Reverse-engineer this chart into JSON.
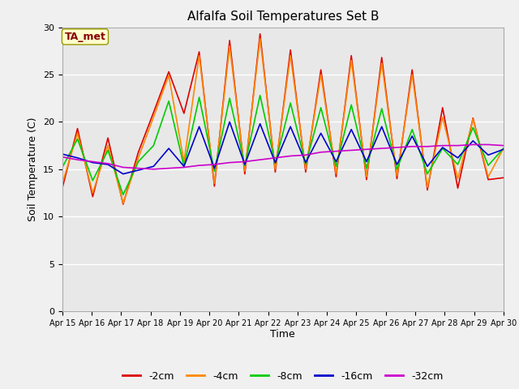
{
  "title": "Alfalfa Soil Temperatures Set B",
  "xlabel": "Time",
  "ylabel": "Soil Temperature (C)",
  "ylim": [
    0,
    30
  ],
  "yticks": [
    0,
    5,
    10,
    15,
    20,
    25,
    30
  ],
  "fig_bg_color": "#f0f0f0",
  "plot_bg_color": "#e8e8e8",
  "line_colors": {
    "-2cm": "#dd0000",
    "-4cm": "#ff8800",
    "-8cm": "#00cc00",
    "-16cm": "#0000cc",
    "-32cm": "#cc00cc"
  },
  "legend_labels": [
    "-2cm",
    "-4cm",
    "-8cm",
    "-16cm",
    "-32cm"
  ],
  "ta_met_label": "TA_met",
  "dates": [
    "Apr 15",
    "Apr 16",
    "Apr 17",
    "Apr 18",
    "Apr 19",
    "Apr 20",
    "Apr 21",
    "Apr 22",
    "Apr 23",
    "Apr 24",
    "Apr 25",
    "Apr 26",
    "Apr 27",
    "Apr 28",
    "Apr 29",
    "Apr 30"
  ],
  "data_2cm": [
    13.0,
    19.3,
    12.1,
    18.3,
    11.3,
    16.8,
    21.0,
    25.3,
    20.9,
    27.4,
    13.2,
    28.6,
    14.5,
    29.3,
    14.7,
    27.6,
    14.7,
    25.5,
    14.2,
    27.0,
    13.9,
    26.8,
    14.0,
    25.5,
    12.8,
    21.5,
    13.0,
    20.4,
    13.9,
    14.1
  ],
  "data_4cm": [
    13.5,
    18.8,
    12.5,
    17.5,
    11.4,
    16.2,
    20.5,
    24.9,
    15.8,
    27.0,
    13.5,
    28.0,
    14.8,
    28.8,
    15.0,
    27.0,
    15.0,
    25.0,
    14.5,
    26.5,
    14.2,
    26.2,
    14.3,
    25.0,
    13.1,
    20.5,
    14.0,
    20.3,
    14.2,
    17.2
  ],
  "data_8cm": [
    15.2,
    18.2,
    13.8,
    17.0,
    12.3,
    15.8,
    17.5,
    22.2,
    15.3,
    22.6,
    14.8,
    22.5,
    15.4,
    22.8,
    15.6,
    22.0,
    15.5,
    21.5,
    15.3,
    21.8,
    15.1,
    21.4,
    15.0,
    19.2,
    14.5,
    17.2,
    15.5,
    19.4,
    15.4,
    17.2
  ],
  "data_16cm": [
    16.6,
    16.2,
    15.7,
    15.5,
    14.5,
    14.9,
    15.3,
    17.2,
    15.3,
    19.5,
    15.1,
    20.0,
    15.5,
    19.8,
    15.7,
    19.5,
    15.7,
    18.8,
    15.8,
    19.2,
    15.8,
    19.5,
    15.5,
    18.5,
    15.3,
    17.3,
    16.2,
    18.0,
    16.5,
    17.1
  ],
  "data_32cm": [
    16.3,
    16.0,
    15.8,
    15.6,
    15.2,
    15.1,
    15.0,
    15.1,
    15.2,
    15.4,
    15.5,
    15.7,
    15.8,
    16.0,
    16.2,
    16.4,
    16.5,
    16.8,
    16.9,
    17.0,
    17.1,
    17.2,
    17.3,
    17.4,
    17.4,
    17.5,
    17.5,
    17.6,
    17.6,
    17.5
  ]
}
